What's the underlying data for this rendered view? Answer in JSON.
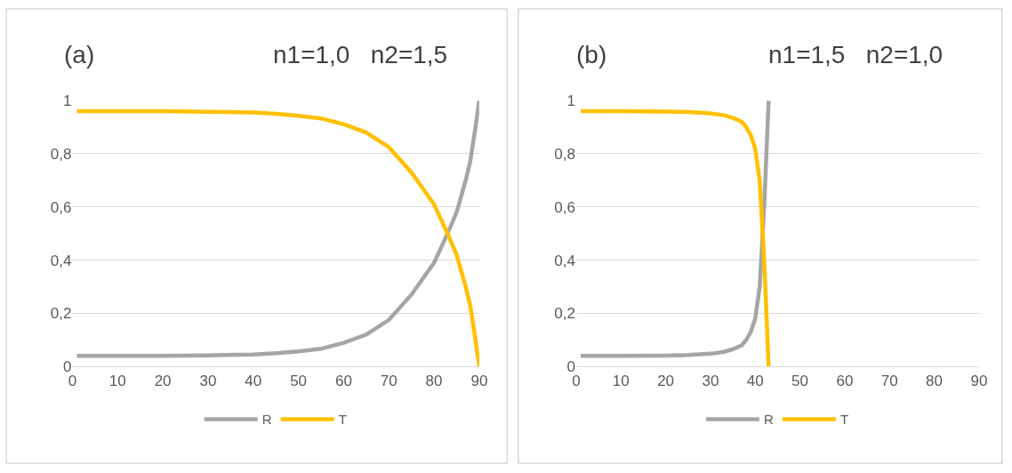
{
  "chart_data": [
    {
      "type": "line",
      "title": "(a)",
      "subtitle": "n1=1,0   n2=1,5",
      "x": [
        1,
        10,
        20,
        30,
        40,
        45,
        50,
        55,
        60,
        65,
        70,
        75,
        80,
        83,
        85,
        87,
        88,
        89,
        90
      ],
      "series": [
        {
          "name": "R",
          "color": "#a5a5a5",
          "values": [
            0.04,
            0.04,
            0.04,
            0.042,
            0.045,
            0.05,
            0.057,
            0.067,
            0.089,
            0.12,
            0.175,
            0.27,
            0.39,
            0.5,
            0.58,
            0.7,
            0.77,
            0.88,
            1
          ]
        },
        {
          "name": "T",
          "color": "#ffc000",
          "values": [
            0.96,
            0.96,
            0.96,
            0.958,
            0.955,
            0.95,
            0.943,
            0.933,
            0.911,
            0.88,
            0.825,
            0.73,
            0.61,
            0.5,
            0.42,
            0.3,
            0.23,
            0.12,
            0
          ]
        }
      ],
      "xlim": [
        0,
        90
      ],
      "xticks": [
        0,
        10,
        20,
        30,
        40,
        50,
        60,
        70,
        80,
        90
      ],
      "ylim": [
        0,
        1
      ],
      "yticks": [
        0,
        {
          "value": 0.2,
          "label": "0,2"
        },
        {
          "value": 0.4,
          "label": "0,4"
        },
        {
          "value": 0.6,
          "label": "0,6"
        },
        {
          "value": 0.8,
          "label": "0,8"
        },
        1
      ],
      "grid": "y",
      "legend": "bottom",
      "marker": "none",
      "line_style": "solid"
    },
    {
      "type": "line",
      "title": "(b)",
      "subtitle": "n1=1,5   n2=1,0",
      "x": [
        1,
        10,
        20,
        25,
        30,
        33,
        35,
        37,
        38,
        39,
        40,
        41,
        42,
        43
      ],
      "series": [
        {
          "name": "R",
          "color": "#a5a5a5",
          "values": [
            0.04,
            0.04,
            0.041,
            0.043,
            0.048,
            0.055,
            0.065,
            0.08,
            0.1,
            0.13,
            0.18,
            0.3,
            0.6,
            1
          ]
        },
        {
          "name": "T",
          "color": "#ffc000",
          "values": [
            0.96,
            0.96,
            0.959,
            0.957,
            0.952,
            0.945,
            0.935,
            0.92,
            0.9,
            0.87,
            0.82,
            0.7,
            0.4,
            0
          ]
        }
      ],
      "xlim": [
        0,
        90
      ],
      "xticks": [
        0,
        10,
        20,
        30,
        40,
        50,
        60,
        70,
        80,
        90
      ],
      "ylim": [
        0,
        1
      ],
      "yticks": [
        0,
        {
          "value": 0.2,
          "label": "0,2"
        },
        {
          "value": 0.4,
          "label": "0,4"
        },
        {
          "value": 0.6,
          "label": "0,6"
        },
        {
          "value": 0.8,
          "label": "0,8"
        },
        1
      ],
      "grid": "y",
      "legend": "bottom",
      "marker": "none",
      "line_style": "solid"
    }
  ]
}
